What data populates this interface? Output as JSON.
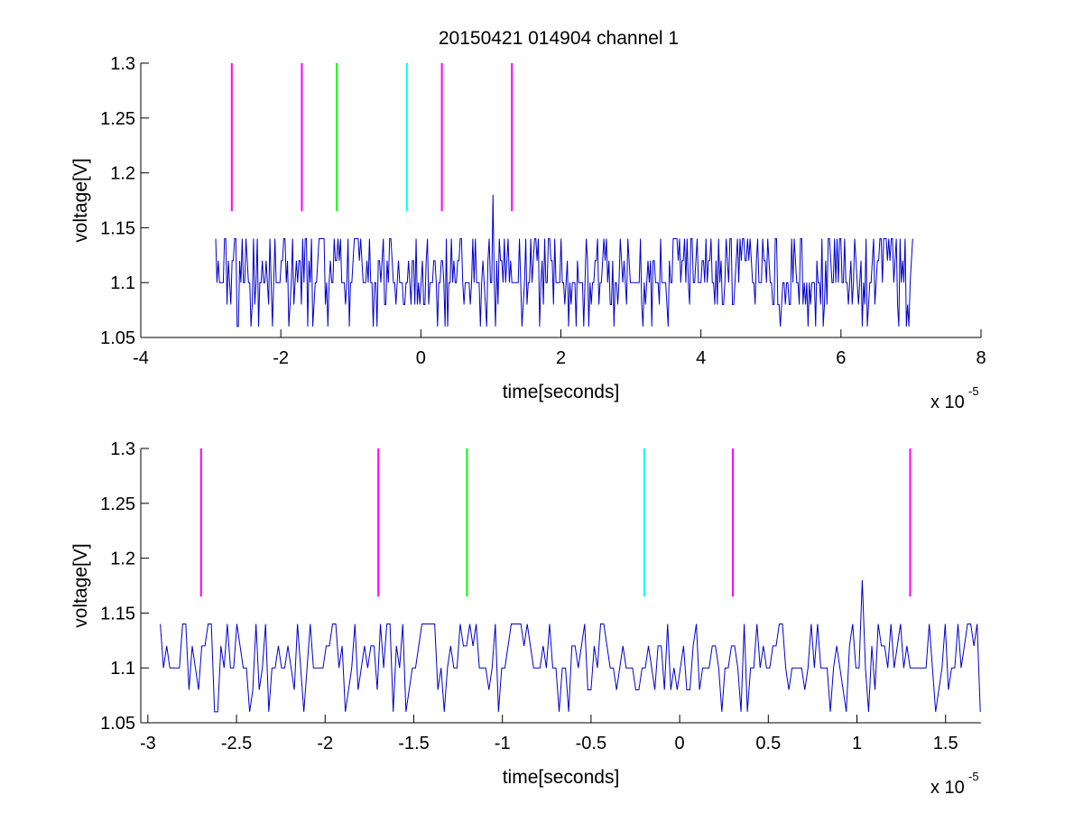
{
  "figure": {
    "title": "20150421 014904 channel 1",
    "background": "#ffffff"
  },
  "chart_data": [
    {
      "type": "line",
      "title": "20150421 014904 channel 1",
      "xlabel": "time[seconds]",
      "ylabel": "voltage[V]",
      "x_multiplier_label": "x 10",
      "x_multiplier_exponent": "-5",
      "xlim": [
        -4,
        8
      ],
      "ylim": [
        1.05,
        1.3
      ],
      "xticks": [
        -4,
        -2,
        0,
        2,
        4,
        6,
        8
      ],
      "xtick_labels": [
        "-4",
        "-2",
        "0",
        "2",
        "4",
        "6",
        "8"
      ],
      "yticks": [
        1.05,
        1.1,
        1.15,
        1.2,
        1.25,
        1.3
      ],
      "ytick_labels": [
        "1.05",
        "1.1",
        "1.15",
        "1.2",
        "1.25",
        "1.3"
      ],
      "grid": false,
      "signal": {
        "color": "#0000cc",
        "x_range": [
          -2.93,
          7.03
        ],
        "levels": [
          1.06,
          1.08,
          1.1,
          1.12,
          1.14
        ],
        "baseline": 1.1,
        "spike": {
          "x": 1.03,
          "y": 1.18
        }
      },
      "markers": [
        {
          "x": -2.7,
          "color": "#ff00ff",
          "y_range": [
            1.165,
            1.3
          ]
        },
        {
          "x": -1.7,
          "color": "#ff00ff",
          "y_range": [
            1.165,
            1.3
          ]
        },
        {
          "x": -1.2,
          "color": "#00ff00",
          "y_range": [
            1.165,
            1.3
          ]
        },
        {
          "x": -0.2,
          "color": "#00ffff",
          "y_range": [
            1.165,
            1.3
          ]
        },
        {
          "x": 0.3,
          "color": "#ff00ff",
          "y_range": [
            1.165,
            1.3
          ]
        },
        {
          "x": 1.3,
          "color": "#ff00ff",
          "y_range": [
            1.165,
            1.3
          ]
        }
      ]
    },
    {
      "type": "line",
      "title": "",
      "xlabel": "time[seconds]",
      "ylabel": "voltage[V]",
      "x_multiplier_label": "x 10",
      "x_multiplier_exponent": "-5",
      "xlim": [
        -3.04,
        1.7
      ],
      "ylim": [
        1.05,
        1.3
      ],
      "xticks": [
        -3,
        -2.5,
        -2,
        -1.5,
        -1,
        -0.5,
        0,
        0.5,
        1,
        1.5
      ],
      "xtick_labels": [
        "-3",
        "-2.5",
        "-2",
        "-1.5",
        "-1",
        "-0.5",
        "0",
        "0.5",
        "1",
        "1.5"
      ],
      "yticks": [
        1.05,
        1.1,
        1.15,
        1.2,
        1.25,
        1.3
      ],
      "ytick_labels": [
        "1.05",
        "1.1",
        "1.15",
        "1.2",
        "1.25",
        "1.3"
      ],
      "grid": false,
      "signal": {
        "color": "#0000cc",
        "x_range": [
          -2.93,
          1.7
        ],
        "levels": [
          1.06,
          1.08,
          1.1,
          1.12,
          1.14
        ],
        "baseline": 1.1,
        "spike": {
          "x": 1.03,
          "y": 1.18
        }
      },
      "markers": [
        {
          "x": -2.7,
          "color": "#ff00ff",
          "y_range": [
            1.165,
            1.3
          ]
        },
        {
          "x": -1.7,
          "color": "#ff00ff",
          "y_range": [
            1.165,
            1.3
          ]
        },
        {
          "x": -1.2,
          "color": "#00ff00",
          "y_range": [
            1.165,
            1.3
          ]
        },
        {
          "x": -0.2,
          "color": "#00ffff",
          "y_range": [
            1.165,
            1.3
          ]
        },
        {
          "x": 0.3,
          "color": "#ff00ff",
          "y_range": [
            1.165,
            1.3
          ]
        },
        {
          "x": 1.3,
          "color": "#ff00ff",
          "y_range": [
            1.165,
            1.3
          ]
        }
      ]
    }
  ]
}
